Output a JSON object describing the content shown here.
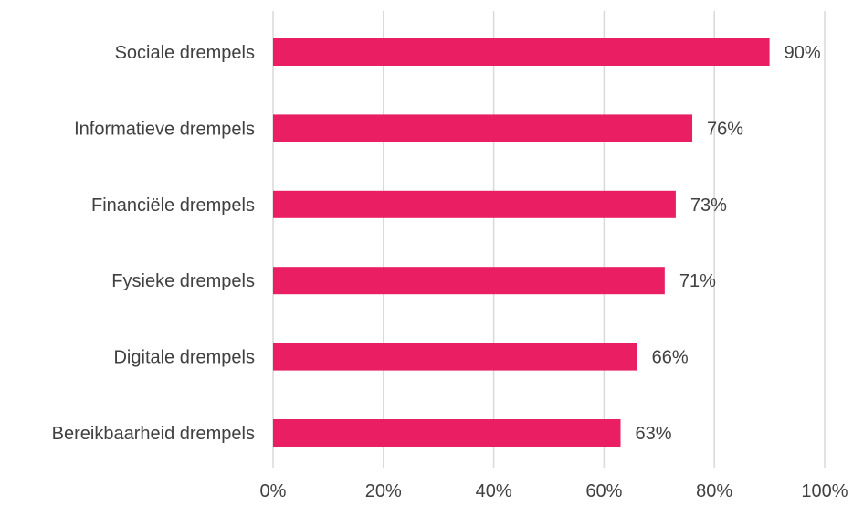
{
  "chart_data": {
    "type": "bar",
    "orientation": "horizontal",
    "title": "",
    "xlabel": "",
    "ylabel": "",
    "categories": [
      "Sociale drempels",
      "Informatieve drempels",
      "Financiële drempels",
      "Fysieke drempels",
      "Digitale drempels",
      "Bereikbaarheid drempels"
    ],
    "values": [
      90,
      76,
      73,
      71,
      66,
      63
    ],
    "value_labels": [
      "90%",
      "76%",
      "73%",
      "71%",
      "66%",
      "63%"
    ],
    "xlim": [
      0,
      100
    ],
    "xticks": [
      0,
      20,
      40,
      60,
      80,
      100
    ],
    "xtick_labels": [
      "0%",
      "20%",
      "40%",
      "60%",
      "80%",
      "100%"
    ],
    "grid": "vertical",
    "legend": "none",
    "bar_color": "#E91E63",
    "grid_color": "#D9D9D9",
    "text_color": "#404040"
  }
}
